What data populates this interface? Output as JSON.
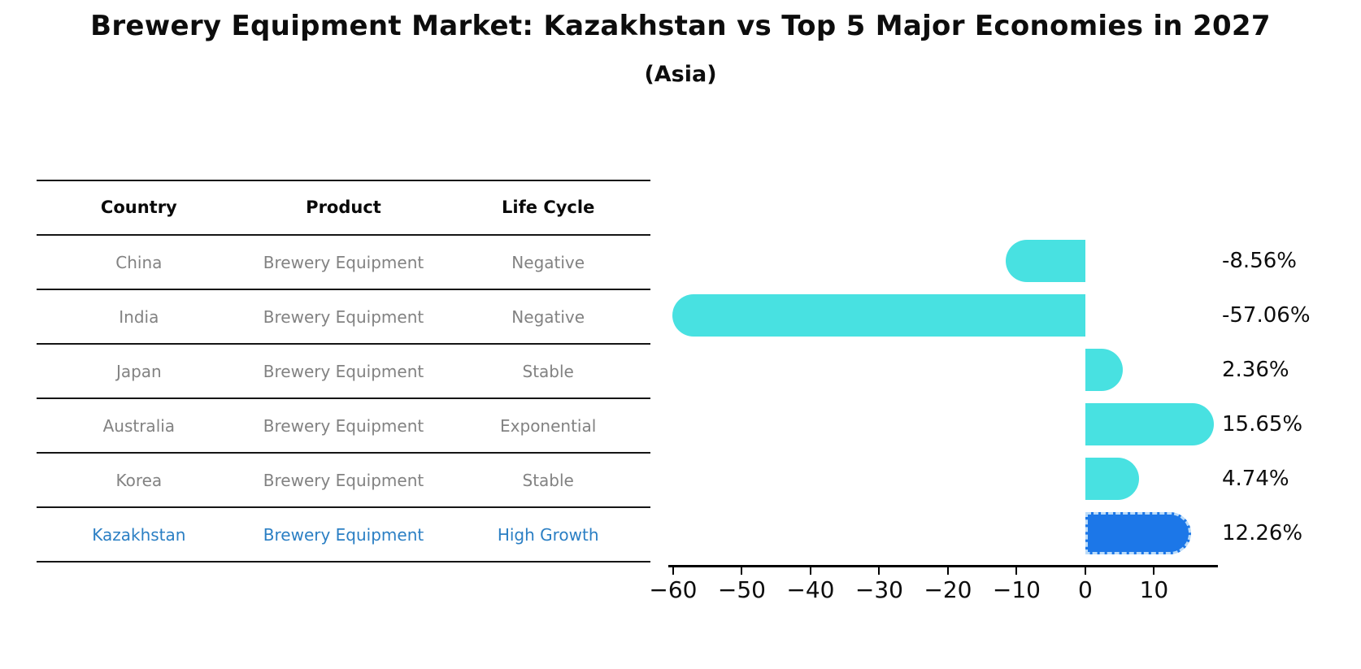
{
  "header": {
    "title": "Brewery Equipment Market: Kazakhstan vs Top 5 Major Economies in 2027",
    "subtitle": "(Asia)"
  },
  "table": {
    "columns": [
      "Country",
      "Product",
      "Life Cycle"
    ],
    "rows": [
      {
        "country": "China",
        "product": "Brewery Equipment",
        "life_cycle": "Negative",
        "highlight": false
      },
      {
        "country": "India",
        "product": "Brewery Equipment",
        "life_cycle": "Negative",
        "highlight": false
      },
      {
        "country": "Japan",
        "product": "Brewery Equipment",
        "life_cycle": "Stable",
        "highlight": false
      },
      {
        "country": "Australia",
        "product": "Brewery Equipment",
        "life_cycle": "Exponential",
        "highlight": false
      },
      {
        "country": "Korea",
        "product": "Brewery Equipment",
        "life_cycle": "Stable",
        "highlight": false
      },
      {
        "country": "Kazakhstan",
        "product": "Brewery Equipment",
        "life_cycle": "High Growth",
        "highlight": true
      }
    ],
    "body_text_color": "#828282",
    "header_text_color": "#0a0a0a",
    "highlight_text_color": "#2b7fc4"
  },
  "chart_data": {
    "type": "bar",
    "orientation": "horizontal",
    "title": "Brewery Equipment Market: Kazakhstan vs Top 5 Major Economies in 2027 (Asia)",
    "categories": [
      "China",
      "India",
      "Japan",
      "Australia",
      "Korea",
      "Kazakhstan"
    ],
    "values": [
      -8.56,
      -57.06,
      2.36,
      15.65,
      4.74,
      12.26
    ],
    "value_labels": [
      "-8.56%",
      "-57.06%",
      "2.36%",
      "15.65%",
      "4.74%",
      "12.26%"
    ],
    "xlim": [
      -60.7,
      19.3
    ],
    "xticks": [
      -60,
      -50,
      -40,
      -30,
      -20,
      -10,
      0,
      10
    ],
    "xtick_labels": [
      "−60",
      "−50",
      "−40",
      "−30",
      "−20",
      "−10",
      "0",
      "10"
    ],
    "grid": false,
    "legend": null,
    "bar_color": "#48e1e1",
    "highlight_index": 5,
    "highlight_bar_color": "#1c77e8",
    "highlight_bar_border_color": "#bcdcf9"
  }
}
